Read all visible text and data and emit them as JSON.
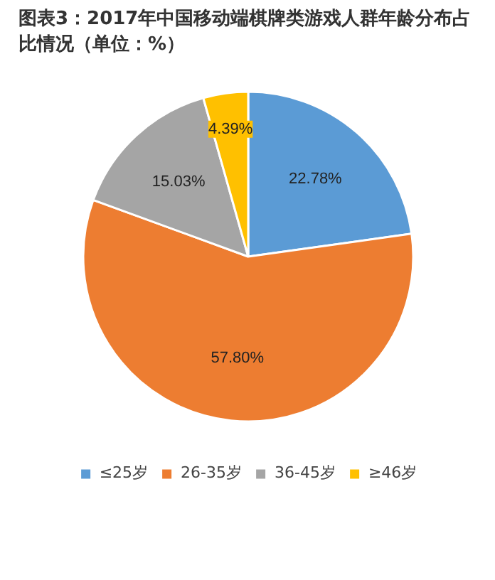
{
  "chart_data": {
    "type": "pie",
    "title": "图表3：2017年中国移动端棋牌类游戏人群年龄分布占比情况（单位：%）",
    "categories": [
      "≤25岁",
      "26-35岁",
      "36-45岁",
      "≥46岁"
    ],
    "values": [
      22.78,
      57.8,
      15.03,
      4.39
    ],
    "colors": [
      "#5b9bd5",
      "#ed7d31",
      "#a5a5a5",
      "#ffc000"
    ],
    "value_labels": [
      "22.78%",
      "57.80%",
      "15.03%",
      "4.39%"
    ],
    "legend": "bottom"
  }
}
